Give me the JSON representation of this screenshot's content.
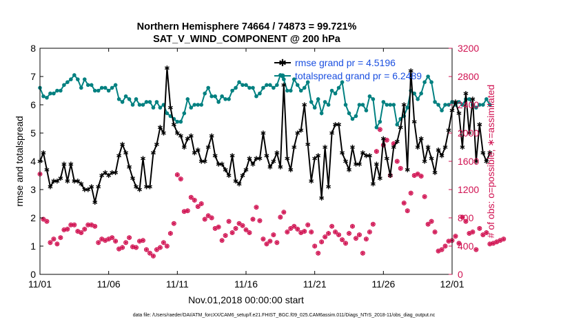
{
  "chart_data": {
    "type": "line",
    "title": "Northern Hemisphere 74664 / 74873 = 99.721%",
    "subtitle": "SAT_V_WIND_COMPONENT @ 200 hPa",
    "xlabel": "Nov.01,2018 00:00:00 start",
    "ylabel": "rmse and totalspread",
    "ylabel_right": "# of obs: o=possible; ∗=assimilated",
    "footnote": "data file: /Users/raeder/DAI/ATM_forcXX/CAM6_setup/f.e21.FHIST_BGC.f09_025.CAM6assim.011/Diags_NTrS_2018-11/obs_diag_output.nc",
    "x_tick_labels": [
      "11/01",
      "11/06",
      "11/11",
      "11/16",
      "11/21",
      "11/26",
      "12/01"
    ],
    "x_ticks": [
      0,
      5,
      10,
      15,
      20,
      25,
      30
    ],
    "xlim": [
      0,
      30
    ],
    "ylim": [
      0,
      8
    ],
    "y_ticks": [
      "0",
      "1",
      "2",
      "3",
      "4",
      "5",
      "6",
      "7",
      "8"
    ],
    "ylim_right": [
      0,
      3200
    ],
    "y_ticks_right": [
      "0",
      "400",
      "800",
      "1200",
      "1600",
      "2000",
      "2400",
      "2800",
      "3200"
    ],
    "grid": false,
    "legend_position": "top-right",
    "colors": {
      "rmse": "#000000",
      "totalspread": "#008080",
      "obs": "#d01050",
      "legend_text": "#1a4fe0"
    },
    "series": [
      {
        "name": "rmse grand pr = 4.5196",
        "axis": "left",
        "color": "#000000",
        "marker": "asterisk",
        "x_step": 0.25,
        "values": [
          4.0,
          4.3,
          3.7,
          3.1,
          3.3,
          3.3,
          3.4,
          3.9,
          3.3,
          3.9,
          3.3,
          3.3,
          3.2,
          3.0,
          3.0,
          3.1,
          2.55,
          3.1,
          3.5,
          3.6,
          3.5,
          3.6,
          3.6,
          4.2,
          4.6,
          4.3,
          3.8,
          3.4,
          3.1,
          3.0,
          4.1,
          3.1,
          3.1,
          4.3,
          4.6,
          5.2,
          5.0,
          7.3,
          5.9,
          5.3,
          5.0,
          4.9,
          4.5,
          4.8,
          4.9,
          4.3,
          4.4,
          4.0,
          4.0,
          4.5,
          4.9,
          4.2,
          3.9,
          3.9,
          3.7,
          3.5,
          4.2,
          3.3,
          3.2,
          3.5,
          3.7,
          4.1,
          3.9,
          4.1,
          4.1,
          5.0,
          4.2,
          3.8,
          4.0,
          4.3,
          3.8,
          6.7,
          4.1,
          3.7,
          4.5,
          5.0,
          5.1,
          6.0,
          4.6,
          3.3,
          4.1,
          4.2,
          2.7,
          4.5,
          3.1,
          5.0,
          5.3,
          5.3,
          4.3,
          4.0,
          3.7,
          4.5,
          3.9,
          3.9,
          4.3,
          4.2,
          4.2,
          3.2,
          3.9,
          3.4,
          4.8,
          4.1,
          3.5,
          4.5,
          4.7,
          5.2,
          6.0,
          3.7,
          7.2,
          5.4,
          4.5,
          4.8,
          4.0,
          4.5,
          4.1,
          3.6,
          4.4,
          4.2,
          4.5,
          5.1,
          5.8,
          6.1,
          5.7,
          4.5,
          6.4,
          5.0,
          6.2,
          4.0,
          5.3,
          4.3,
          4.0,
          4.3
        ]
      },
      {
        "name": "totalspread grand pr = 6.2489",
        "axis": "left",
        "color": "#008080",
        "marker": "circle",
        "x_step": 0.25,
        "values": [
          6.6,
          6.3,
          6.25,
          6.4,
          6.4,
          6.5,
          6.5,
          6.7,
          6.8,
          6.9,
          7.05,
          6.9,
          6.6,
          6.9,
          6.7,
          6.7,
          6.5,
          6.5,
          6.6,
          6.6,
          6.5,
          6.6,
          6.7,
          6.2,
          6.1,
          6.3,
          6.2,
          6.0,
          6.2,
          6.0,
          6.0,
          6.1,
          6.1,
          5.9,
          6.1,
          5.9,
          6.0,
          5.7,
          5.6,
          5.5,
          5.4,
          5.4,
          5.7,
          6.2,
          5.9,
          6.0,
          6.0,
          6.0,
          6.4,
          6.6,
          6.3,
          6.3,
          6.1,
          6.3,
          6.2,
          6.2,
          6.5,
          6.6,
          6.8,
          6.7,
          6.7,
          6.6,
          6.6,
          6.3,
          6.4,
          6.6,
          6.7,
          6.7,
          6.6,
          6.7,
          7.05,
          6.9,
          6.5,
          6.5,
          6.9,
          6.7,
          6.5,
          6.6,
          6.8,
          6.1,
          5.9,
          6.2,
          5.7,
          6.1,
          6.0,
          6.5,
          6.4,
          6.6,
          6.8,
          6.0,
          5.7,
          5.5,
          5.6,
          6.0,
          6.0,
          5.8,
          6.3,
          6.2,
          5.2,
          5.4,
          6.1,
          6.0,
          6.0,
          6.0,
          5.3,
          5.5,
          5.6,
          5.9,
          6.5,
          6.4,
          6.2,
          6.4,
          6.8,
          7.0,
          6.8,
          6.1,
          6.0,
          5.8,
          6.0,
          6.0,
          6.1,
          6.0,
          6.1,
          6.0,
          6.2,
          6.2,
          6.0,
          5.9,
          6.0,
          6.0,
          6.2,
          6.0
        ]
      },
      {
        "name": "# of obs possible",
        "axis": "right",
        "color": "#d01050",
        "marker": "o",
        "x_step": 0.25,
        "values": [
          1420,
          780,
          750,
          450,
          500,
          430,
          520,
          630,
          640,
          700,
          700,
          610,
          590,
          640,
          700,
          700,
          680,
          450,
          500,
          480,
          500,
          520,
          470,
          360,
          380,
          450,
          520,
          390,
          380,
          470,
          480,
          350,
          300,
          260,
          350,
          380,
          450,
          400,
          580,
          720,
          1410,
          1350,
          890,
          900,
          1090,
          1050,
          960,
          1000,
          780,
          830,
          800,
          650,
          670,
          480,
          550,
          750,
          590,
          650,
          720,
          690,
          630,
          590,
          780,
          950,
          760,
          500,
          430,
          470,
          560,
          450,
          810,
          880,
          600,
          650,
          680,
          640,
          590,
          610,
          700,
          600,
          400,
          300,
          460,
          530,
          580,
          680,
          600,
          560,
          490,
          440,
          580,
          680,
          510,
          560,
          300,
          500,
          600,
          710,
          1740,
          2050,
          1830,
          1900,
          1400,
          1850,
          1600,
          1500,
          1010,
          900,
          1150,
          1400,
          1420,
          1390,
          1100,
          710,
          750,
          600,
          330,
          350,
          400,
          470,
          480,
          540,
          440,
          810,
          750,
          580,
          600,
          350,
          650,
          560,
          590,
          430,
          440,
          460,
          480,
          500
        ]
      },
      {
        "name": "# of obs assimilated",
        "axis": "right",
        "color": "#d01050",
        "marker": "asterisk",
        "x_step": 0.25,
        "values": [
          1420,
          780,
          750,
          450,
          500,
          430,
          520,
          630,
          640,
          700,
          700,
          610,
          590,
          640,
          700,
          700,
          680,
          450,
          500,
          480,
          500,
          520,
          470,
          360,
          380,
          450,
          520,
          390,
          380,
          470,
          480,
          350,
          300,
          260,
          350,
          380,
          450,
          400,
          580,
          720,
          1410,
          1350,
          890,
          900,
          1090,
          1050,
          960,
          1000,
          780,
          830,
          800,
          650,
          670,
          480,
          550,
          750,
          590,
          650,
          720,
          690,
          630,
          590,
          780,
          950,
          760,
          500,
          430,
          470,
          560,
          450,
          810,
          880,
          600,
          650,
          680,
          640,
          590,
          610,
          700,
          600,
          400,
          300,
          460,
          530,
          580,
          680,
          600,
          560,
          490,
          440,
          580,
          680,
          510,
          560,
          300,
          500,
          600,
          710,
          1740,
          2050,
          1830,
          1900,
          1400,
          1850,
          1600,
          1500,
          1010,
          900,
          1150,
          1400,
          1420,
          1390,
          1100,
          710,
          750,
          600,
          330,
          350,
          400,
          470,
          480,
          540,
          440,
          810,
          750,
          580,
          600,
          350,
          650,
          560,
          590,
          430,
          440,
          460,
          480,
          500
        ]
      }
    ]
  }
}
